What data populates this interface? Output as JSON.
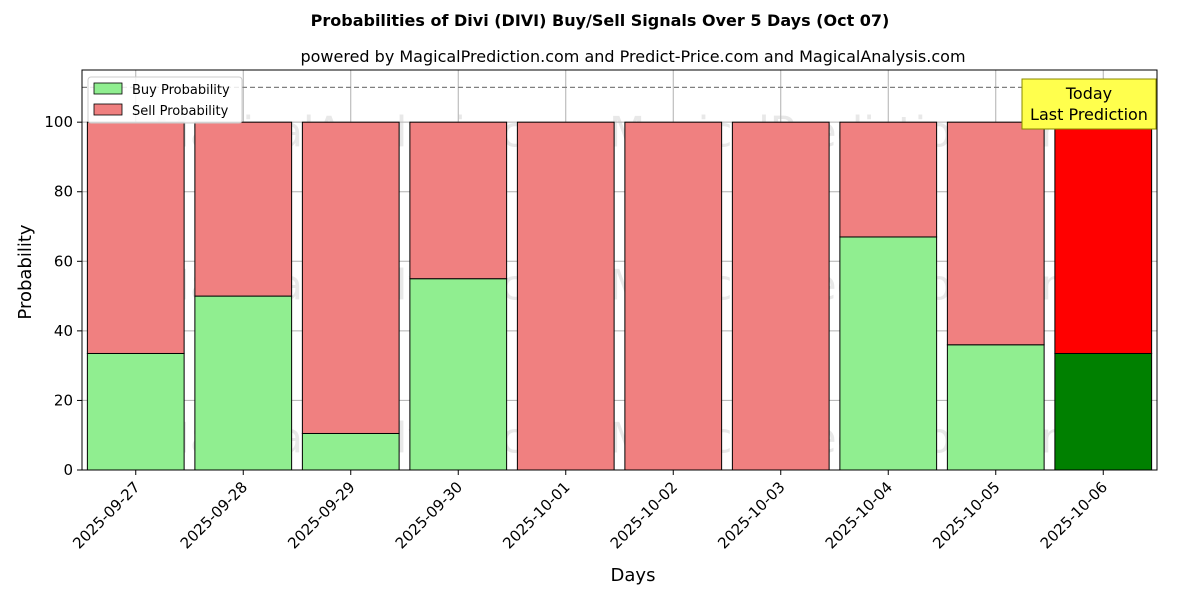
{
  "chart_data": {
    "type": "bar",
    "stacked": true,
    "title": "Probabilities of Divi (DIVI) Buy/Sell Signals Over 5 Days (Oct 07)",
    "subtitle": "powered by MagicalPrediction.com and Predict-Price.com and MagicalAnalysis.com",
    "xlabel": "Days",
    "ylabel": "Probability",
    "ylim": [
      0,
      115
    ],
    "yticks": [
      0,
      20,
      40,
      60,
      80,
      100
    ],
    "reference_line": 110,
    "grid": true,
    "legend_placement": "top-left",
    "categories": [
      "2025-09-27",
      "2025-09-28",
      "2025-09-29",
      "2025-09-30",
      "2025-10-01",
      "2025-10-02",
      "2025-10-03",
      "2025-10-04",
      "2025-10-05",
      "2025-10-06"
    ],
    "series": [
      {
        "name": "Buy Probability",
        "color": "#90ee90",
        "highlight_color": "#008000",
        "values": [
          33.5,
          50,
          10.5,
          55,
          0,
          0,
          0,
          67,
          36,
          33.5
        ]
      },
      {
        "name": "Sell Probability",
        "color": "#f08080",
        "highlight_color": "#ff0000",
        "values": [
          66.5,
          50,
          89.5,
          45,
          100,
          100,
          100,
          33,
          64,
          66.5
        ]
      }
    ],
    "highlight_index": 9,
    "annotation": {
      "lines": [
        "Today",
        "Last Prediction"
      ],
      "background": "#ffff4d",
      "border": "#8a8a00"
    },
    "watermarks": [
      "MagicalAnalysis.com",
      "MagicalPrediction.com"
    ]
  }
}
